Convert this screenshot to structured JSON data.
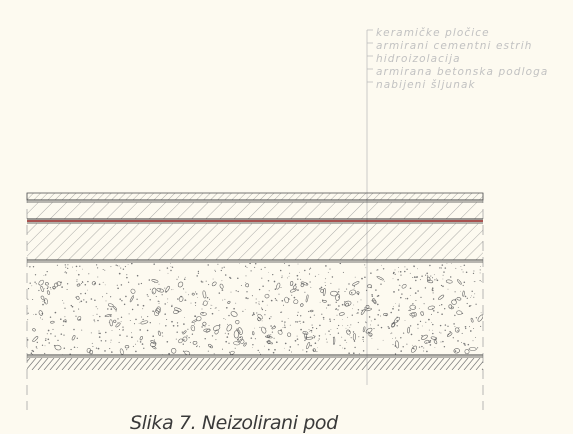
{
  "legend": {
    "layers": [
      "keramičke pločice",
      "armirani cementni estrih",
      "hidroizolacija",
      "armirana betonska podloga",
      "nabijeni šljunak"
    ]
  },
  "caption": "Slika 7. Neizolirani pod",
  "colors": {
    "background": "#fdfaf0",
    "linework": "#555555",
    "leader": "#bdbdbd",
    "waterproofing": "#8b1a1a"
  }
}
